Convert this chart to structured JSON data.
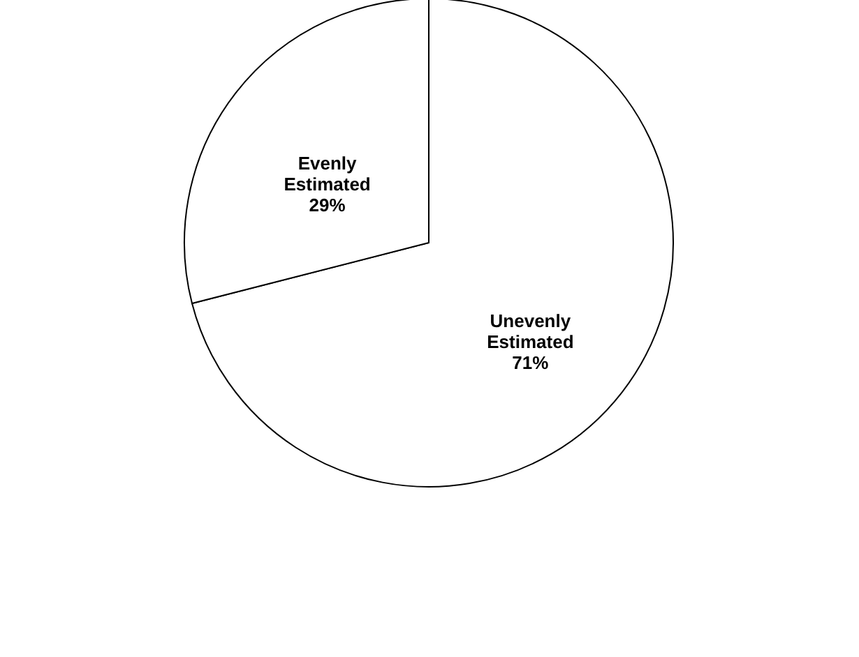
{
  "chart_data": {
    "type": "pie",
    "categories": [
      "Unevenly Estimated",
      "Evenly Estimated"
    ],
    "values": [
      71,
      29
    ],
    "value_labels": [
      "71%",
      "29%"
    ],
    "colors": [
      "#ffffff",
      "#ffffff"
    ]
  }
}
